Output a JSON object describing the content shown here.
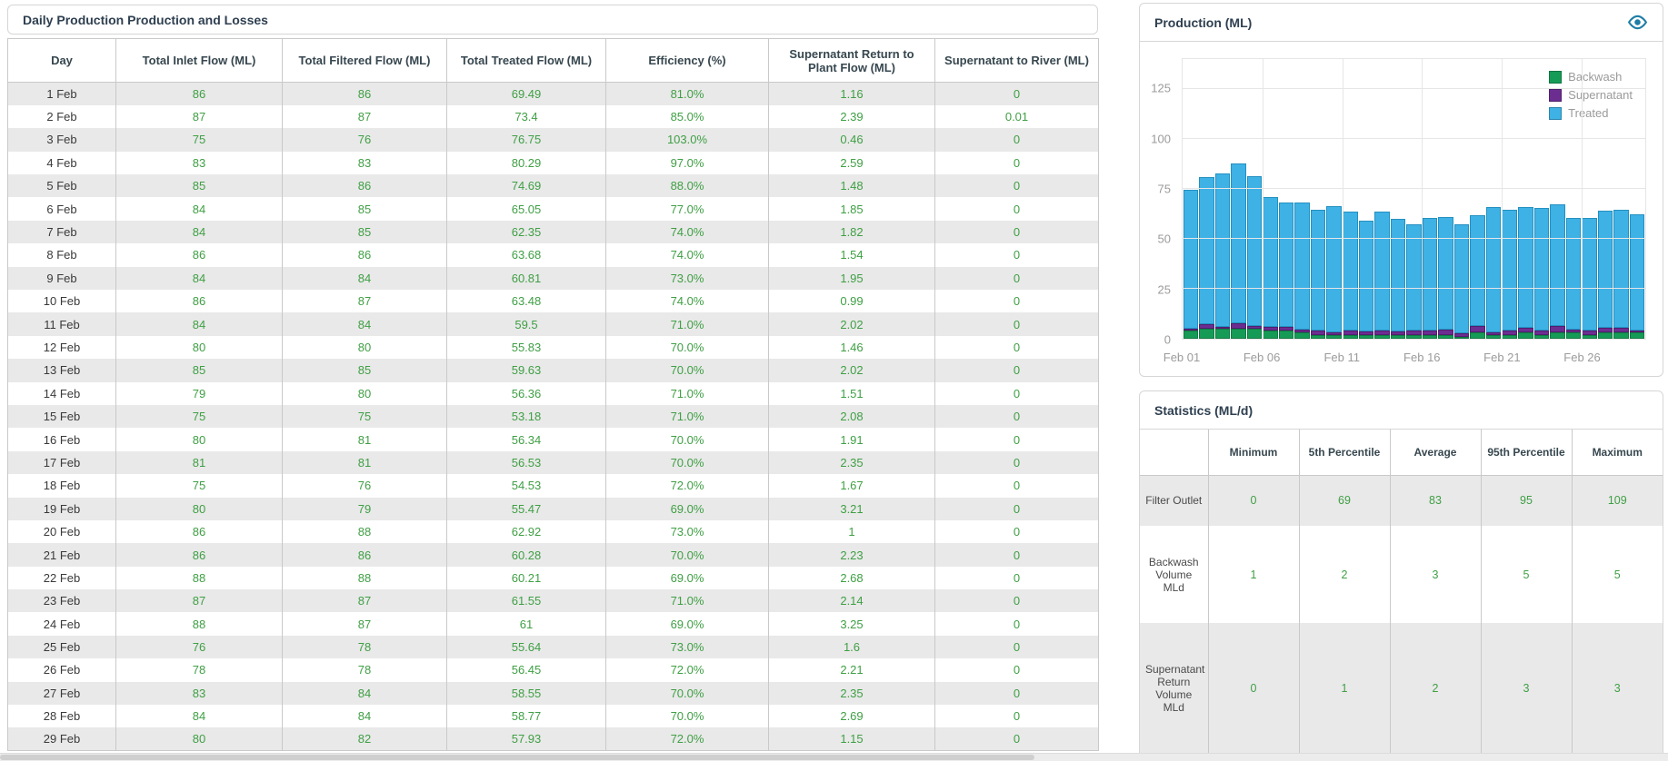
{
  "left_panel": {
    "title": "Daily Production Production and Losses",
    "table": {
      "columns": [
        "Day",
        "Total Inlet Flow (ML)",
        "Total Filtered Flow (ML)",
        "Total Treated Flow (ML)",
        "Efficiency (%)",
        "Supernatant Return to Plant Flow (ML)",
        "Supernatant to River (ML)"
      ],
      "rows": [
        [
          "1 Feb",
          "86",
          "86",
          "69.49",
          "81.0%",
          "1.16",
          "0"
        ],
        [
          "2 Feb",
          "87",
          "87",
          "73.4",
          "85.0%",
          "2.39",
          "0.01"
        ],
        [
          "3 Feb",
          "75",
          "76",
          "76.75",
          "103.0%",
          "0.46",
          "0"
        ],
        [
          "4 Feb",
          "83",
          "83",
          "80.29",
          "97.0%",
          "2.59",
          "0"
        ],
        [
          "5 Feb",
          "85",
          "86",
          "74.69",
          "88.0%",
          "1.48",
          "0"
        ],
        [
          "6 Feb",
          "84",
          "85",
          "65.05",
          "77.0%",
          "1.85",
          "0"
        ],
        [
          "7 Feb",
          "84",
          "85",
          "62.35",
          "74.0%",
          "1.82",
          "0"
        ],
        [
          "8 Feb",
          "86",
          "86",
          "63.68",
          "74.0%",
          "1.54",
          "0"
        ],
        [
          "9 Feb",
          "84",
          "84",
          "60.81",
          "73.0%",
          "1.95",
          "0"
        ],
        [
          "10 Feb",
          "86",
          "87",
          "63.48",
          "74.0%",
          "0.99",
          "0"
        ],
        [
          "11 Feb",
          "84",
          "84",
          "59.5",
          "71.0%",
          "2.02",
          "0"
        ],
        [
          "12 Feb",
          "80",
          "80",
          "55.83",
          "70.0%",
          "1.46",
          "0"
        ],
        [
          "13 Feb",
          "85",
          "85",
          "59.63",
          "70.0%",
          "2.02",
          "0"
        ],
        [
          "14 Feb",
          "79",
          "80",
          "56.36",
          "71.0%",
          "1.51",
          "0"
        ],
        [
          "15 Feb",
          "75",
          "75",
          "53.18",
          "71.0%",
          "2.08",
          "0"
        ],
        [
          "16 Feb",
          "80",
          "81",
          "56.34",
          "70.0%",
          "1.91",
          "0"
        ],
        [
          "17 Feb",
          "81",
          "81",
          "56.53",
          "70.0%",
          "2.35",
          "0"
        ],
        [
          "18 Feb",
          "75",
          "76",
          "54.53",
          "72.0%",
          "1.67",
          "0"
        ],
        [
          "19 Feb",
          "80",
          "79",
          "55.47",
          "69.0%",
          "3.21",
          "0"
        ],
        [
          "20 Feb",
          "86",
          "88",
          "62.92",
          "73.0%",
          "1",
          "0"
        ],
        [
          "21 Feb",
          "86",
          "86",
          "60.28",
          "70.0%",
          "2.23",
          "0"
        ],
        [
          "22 Feb",
          "88",
          "88",
          "60.21",
          "69.0%",
          "2.68",
          "0"
        ],
        [
          "23 Feb",
          "87",
          "87",
          "61.55",
          "71.0%",
          "2.14",
          "0"
        ],
        [
          "24 Feb",
          "88",
          "87",
          "61",
          "69.0%",
          "3.25",
          "0"
        ],
        [
          "25 Feb",
          "76",
          "78",
          "55.64",
          "73.0%",
          "1.6",
          "0"
        ],
        [
          "26 Feb",
          "78",
          "78",
          "56.45",
          "72.0%",
          "2.21",
          "0"
        ],
        [
          "27 Feb",
          "83",
          "84",
          "58.55",
          "70.0%",
          "2.35",
          "0"
        ],
        [
          "28 Feb",
          "84",
          "84",
          "58.77",
          "70.0%",
          "2.69",
          "0"
        ],
        [
          "29 Feb",
          "80",
          "82",
          "57.93",
          "72.0%",
          "1.15",
          "0"
        ]
      ]
    }
  },
  "production_panel": {
    "title": "Production (ML)",
    "icon": "eye-icon"
  },
  "chart_data": {
    "type": "bar",
    "stacked": true,
    "title": "Production (ML)",
    "categories": [
      "Feb 01",
      "Feb 02",
      "Feb 03",
      "Feb 04",
      "Feb 05",
      "Feb 06",
      "Feb 07",
      "Feb 08",
      "Feb 09",
      "Feb 10",
      "Feb 11",
      "Feb 12",
      "Feb 13",
      "Feb 14",
      "Feb 15",
      "Feb 16",
      "Feb 17",
      "Feb 18",
      "Feb 19",
      "Feb 20",
      "Feb 21",
      "Feb 22",
      "Feb 23",
      "Feb 24",
      "Feb 25",
      "Feb 26",
      "Feb 27",
      "Feb 28",
      "Feb 29"
    ],
    "series": [
      {
        "name": "Backwash",
        "color": "#169b56",
        "border": "#0e7a42",
        "values": [
          4,
          5,
          5,
          5,
          5,
          4,
          4,
          3,
          2,
          2,
          2,
          2,
          2,
          2,
          2,
          2,
          2,
          1,
          3,
          2,
          2,
          3,
          2,
          3,
          3,
          2,
          3,
          3,
          3
        ]
      },
      {
        "name": "Supernatant",
        "color": "#6c2d91",
        "border": "#521f70",
        "values": [
          1.16,
          2.39,
          0.46,
          2.59,
          1.48,
          1.85,
          1.82,
          1.54,
          1.95,
          0.99,
          2.02,
          1.46,
          2.02,
          1.51,
          2.08,
          1.91,
          2.35,
          1.67,
          3.21,
          1,
          2.23,
          2.68,
          2.14,
          3.25,
          1.6,
          2.21,
          2.35,
          2.69,
          1.15
        ]
      },
      {
        "name": "Treated",
        "color": "#3eb1e5",
        "border": "#2490c0",
        "values": [
          69.49,
          73.4,
          76.75,
          80.29,
          74.69,
          65.05,
          62.35,
          63.68,
          60.81,
          63.48,
          59.5,
          55.83,
          59.63,
          56.36,
          53.18,
          56.34,
          56.53,
          54.53,
          55.47,
          62.92,
          60.28,
          60.21,
          61.55,
          61,
          55.64,
          56.45,
          58.55,
          58.77,
          57.93
        ]
      }
    ],
    "ylim": [
      0,
      140
    ],
    "yticks": [
      0,
      25,
      50,
      75,
      100,
      125
    ],
    "xtick_labels": [
      "Feb 01",
      "Feb 06",
      "Feb 11",
      "Feb 16",
      "Feb 21",
      "Feb 26"
    ],
    "xtick_indices": [
      0,
      5,
      10,
      15,
      20,
      25
    ],
    "grid": true,
    "legend_position": "top-right"
  },
  "stats_panel": {
    "title": "Statistics (ML/d)",
    "columns": [
      "",
      "Minimum",
      "5th Percentile",
      "Average",
      "95th Percentile",
      "Maximum"
    ],
    "rows": [
      {
        "label": "Filter Outlet",
        "values": [
          "0",
          "69",
          "83",
          "95",
          "109"
        ]
      },
      {
        "label": "Backwash Volume MLd",
        "values": [
          "1",
          "2",
          "3",
          "5",
          "5"
        ]
      },
      {
        "label": "Supernatant Return Volume MLd",
        "values": [
          "0",
          "1",
          "2",
          "3",
          "3"
        ]
      }
    ]
  },
  "colors": {
    "value_green": "#3f9f44",
    "title_navy": "#2e3f50",
    "row_stripe": "#e9e9e9",
    "table_border": "#c9c9c9",
    "axis_label_gray": "#9b9b9b",
    "eye_icon_teal": "#1e7da5",
    "backwash_green": "#169b56",
    "supernatant_purple": "#6c2d91",
    "treated_blue": "#3eb1e5"
  }
}
